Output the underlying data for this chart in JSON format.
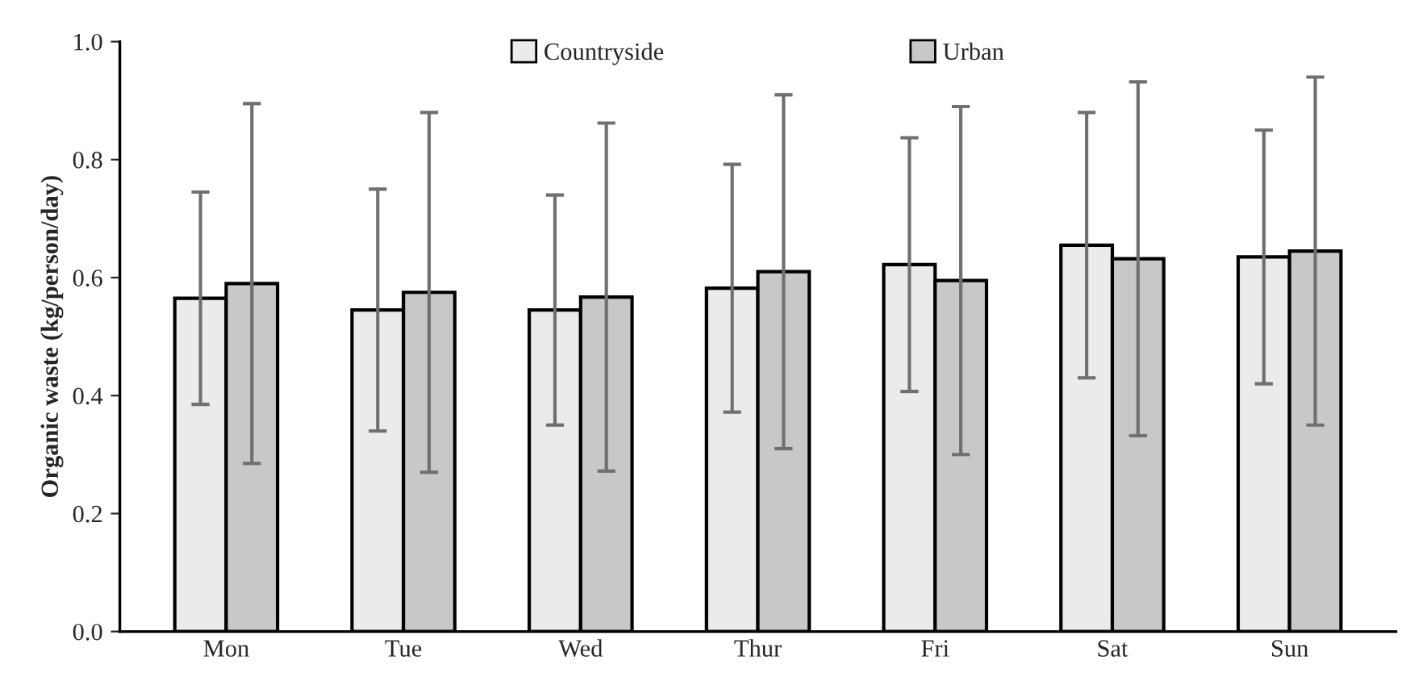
{
  "chart_data": {
    "type": "bar",
    "ylabel": "Organic waste (kg/person/day)",
    "categories": [
      "Mon",
      "Tue",
      "Wed",
      "Thur",
      "Fri",
      "Sat",
      "Sun"
    ],
    "series": [
      {
        "name": "Countryside",
        "color": "#ebebeb",
        "values": [
          0.565,
          0.545,
          0.545,
          0.582,
          0.622,
          0.655,
          0.635
        ],
        "errors": [
          0.18,
          0.205,
          0.195,
          0.21,
          0.215,
          0.225,
          0.215
        ]
      },
      {
        "name": "Urban",
        "color": "#c8c8c8",
        "values": [
          0.59,
          0.575,
          0.567,
          0.61,
          0.595,
          0.632,
          0.645
        ],
        "errors": [
          0.305,
          0.305,
          0.295,
          0.3,
          0.295,
          0.3,
          0.295
        ]
      }
    ],
    "ylim": [
      0,
      1.0
    ],
    "yticks": [
      {
        "value": 0,
        "label": "0.0"
      },
      {
        "value": 0.2,
        "label": "0.2"
      },
      {
        "value": 0.4,
        "label": "0.4"
      },
      {
        "value": 0.6,
        "label": "0.6"
      },
      {
        "value": 0.8,
        "label": "0.8"
      },
      {
        "value": 1.0,
        "label": "1.0"
      }
    ],
    "grid": false,
    "legend": "top"
  }
}
